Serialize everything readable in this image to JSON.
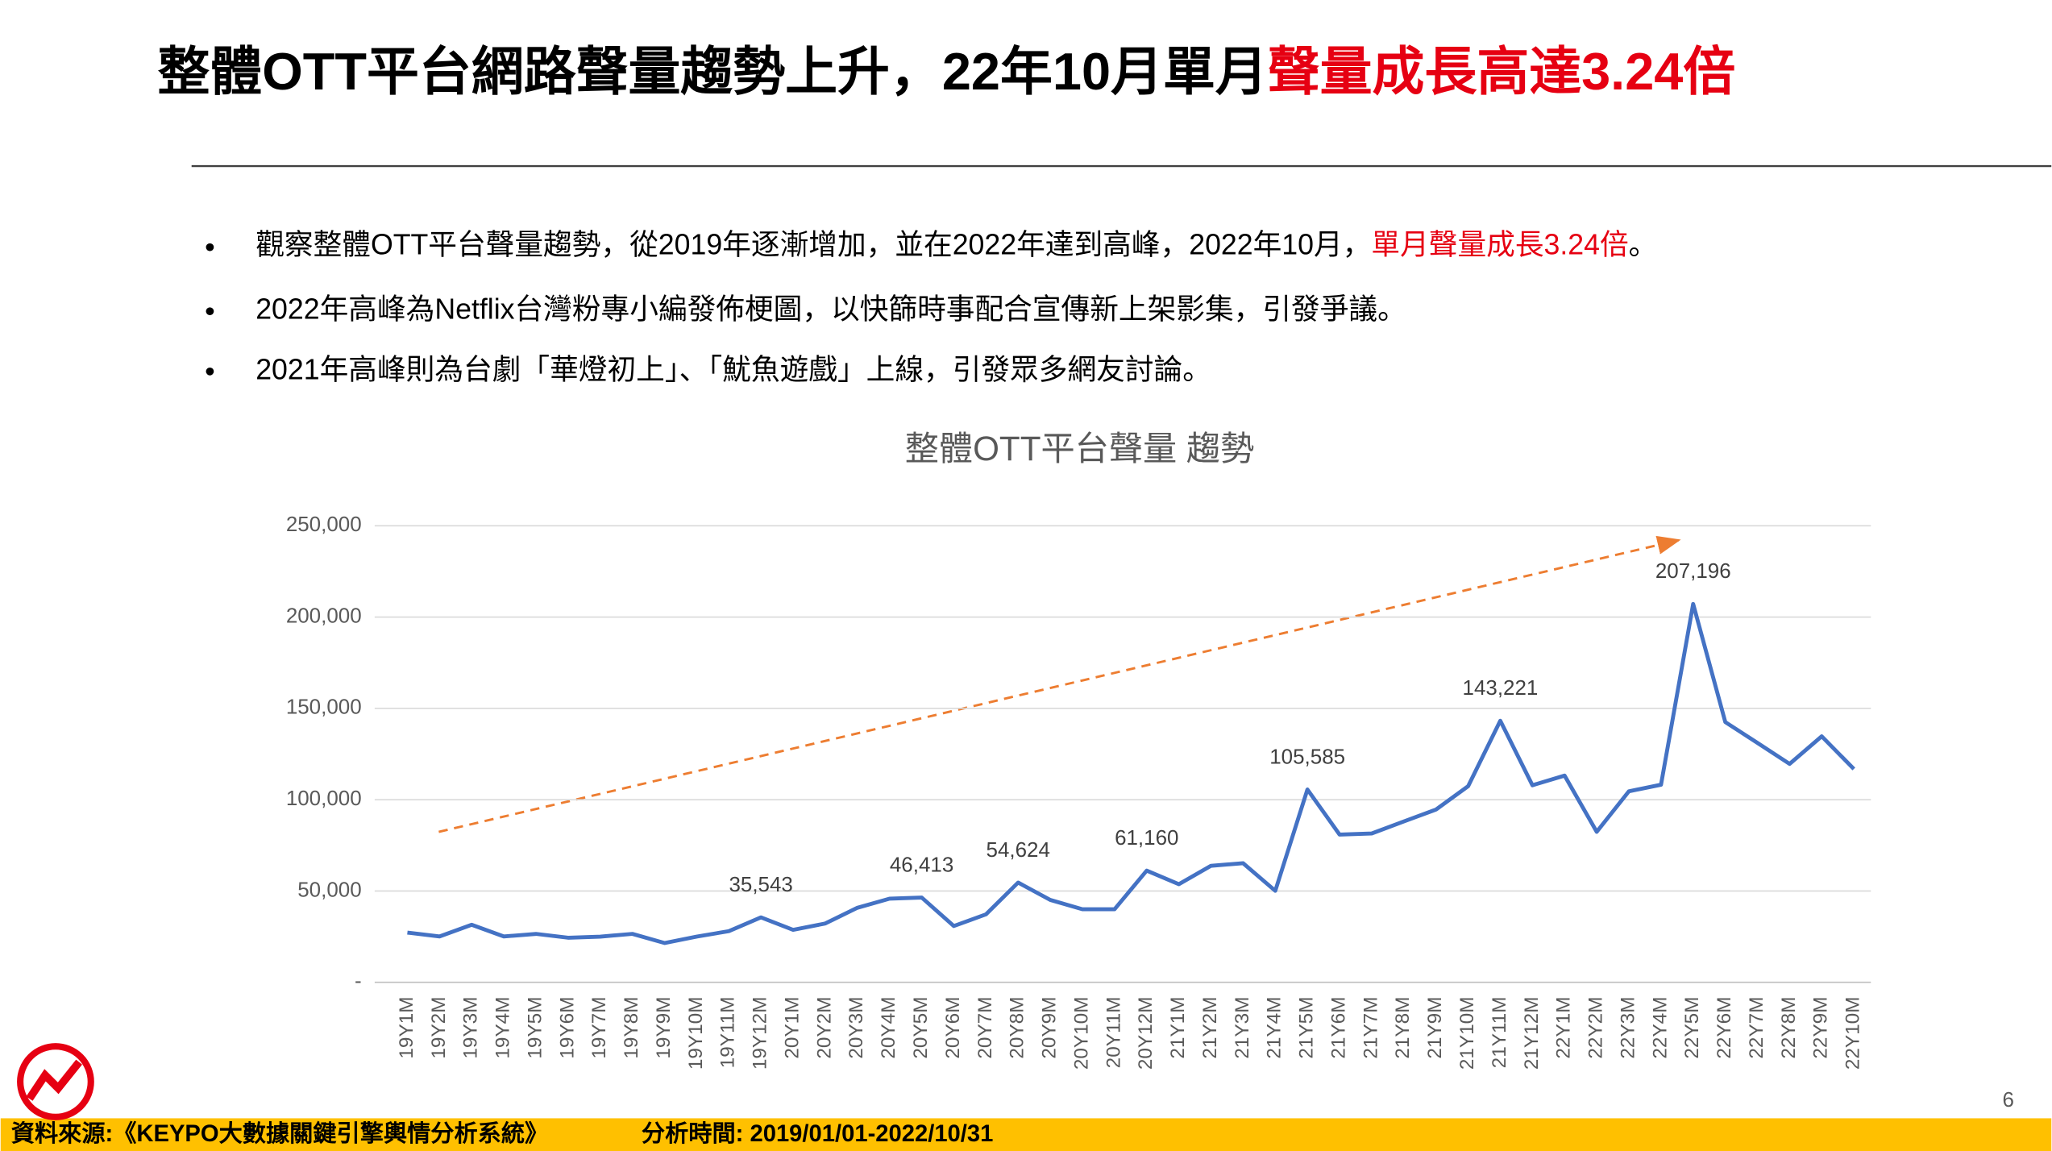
{
  "header": {
    "title": "整體OTT平台網路聲量趨勢上升，22年10月單月",
    "title_highlight": "聲量成長高達3.24倍"
  },
  "bullets": [
    {
      "text": "觀察整體OTT平台聲量趨勢，從2019年逐漸增加，並在2022年達到高峰，2022年10月，",
      "highlight": "單月聲量成長3.24倍",
      "tail": "。"
    },
    {
      "text": "2022年高峰為Netflix台灣粉專小編發佈梗圖，以快篩時事配合宣傳新上架影集，引發爭議。"
    },
    {
      "text": "2021年高峰則為台劇「華燈初上」、「魷魚遊戲」上線，引發眾多網友討論。"
    }
  ],
  "chart_data": {
    "type": "line",
    "title": "整體OTT平台聲量 趨勢",
    "categories": [
      "19Y1M",
      "19Y2M",
      "19Y3M",
      "19Y4M",
      "19Y5M",
      "19Y6M",
      "19Y7M",
      "19Y8M",
      "19Y9M",
      "19Y10M",
      "19Y11M",
      "19Y12M",
      "20Y1M",
      "20Y2M",
      "20Y3M",
      "20Y4M",
      "20Y5M",
      "20Y6M",
      "20Y7M",
      "20Y8M",
      "20Y9M",
      "20Y10M",
      "20Y11M",
      "20Y12M",
      "21Y1M",
      "21Y2M",
      "21Y3M",
      "21Y4M",
      "21Y5M",
      "21Y6M",
      "21Y7M",
      "21Y8M",
      "21Y9M",
      "21Y10M",
      "21Y11M",
      "21Y12M",
      "22Y1M",
      "22Y2M",
      "22Y3M",
      "22Y4M",
      "22Y5M",
      "22Y6M",
      "22Y7M",
      "22Y8M",
      "22Y9M",
      "22Y10M"
    ],
    "series": [
      {
        "name": "整體OTT平台聲量",
        "color": "#4472c4",
        "values": [
          27200,
          25100,
          31500,
          25100,
          26500,
          24400,
          25000,
          26500,
          21500,
          25000,
          28000,
          35543,
          28700,
          32200,
          40800,
          45800,
          46413,
          30800,
          37200,
          54624,
          45100,
          40000,
          40000,
          61160,
          53700,
          63800,
          65200,
          50100,
          105585,
          80900,
          81500,
          88100,
          94600,
          107400,
          143221,
          107900,
          113200,
          82400,
          104600,
          108200,
          207196,
          142500,
          131100,
          119600,
          134700,
          116800
        ],
        "value_labels": [
          null,
          null,
          null,
          null,
          null,
          null,
          null,
          null,
          null,
          null,
          null,
          "35,543",
          null,
          null,
          null,
          null,
          "46,413",
          null,
          null,
          "54,624",
          null,
          null,
          null,
          "61,160",
          null,
          null,
          null,
          null,
          "105,585",
          null,
          null,
          null,
          null,
          null,
          "143,221",
          null,
          null,
          null,
          null,
          null,
          "207,196",
          null,
          null,
          null,
          null,
          null
        ]
      }
    ],
    "ylim": [
      0,
      250000
    ],
    "yticks": [
      {
        "value": 0,
        "label": "-"
      },
      {
        "value": 50000,
        "label": "50,000"
      },
      {
        "value": 100000,
        "label": "100,000"
      },
      {
        "value": 150000,
        "label": "150,000"
      },
      {
        "value": 200000,
        "label": "200,000"
      },
      {
        "value": 250000,
        "label": "250,000"
      }
    ],
    "grid": true
  },
  "footer": {
    "source": "資料來源:《KEYPO大數據關鍵引擎輿情分析系統》",
    "period": "分析時間: 2019/01/01-2022/10/31"
  },
  "page_number": "6"
}
